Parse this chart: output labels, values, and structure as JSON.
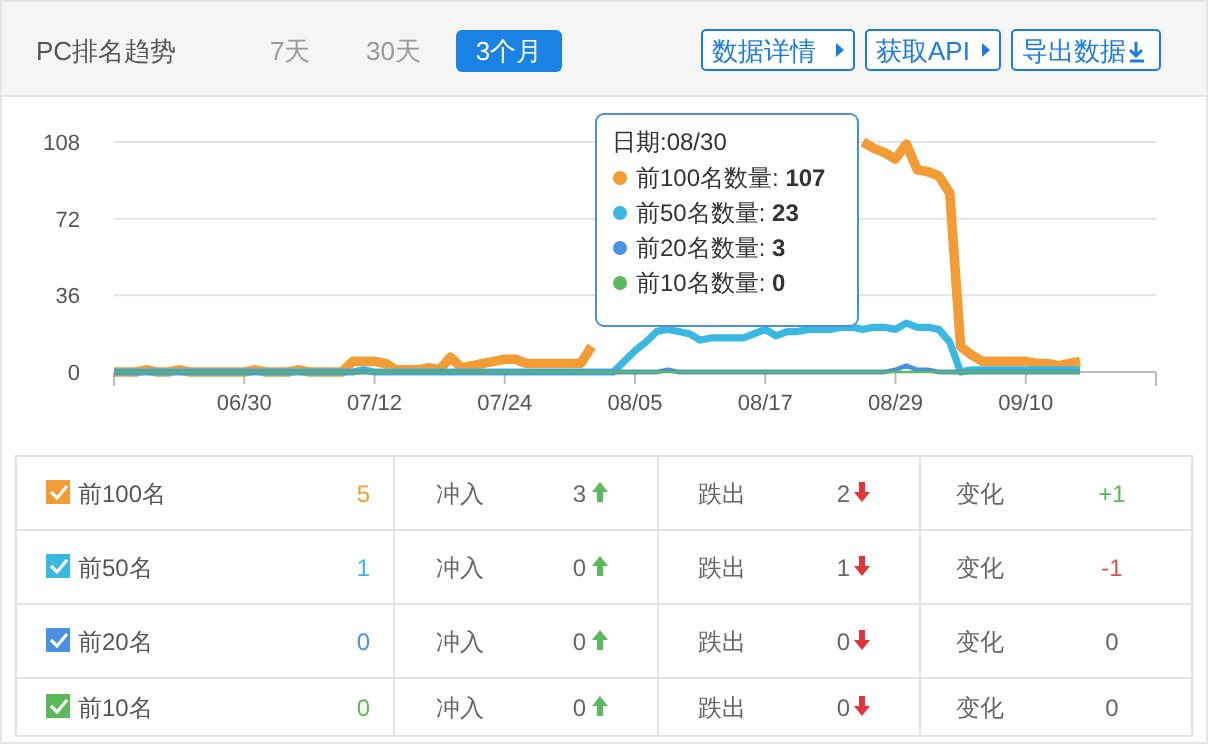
{
  "chart_data": {
    "type": "line",
    "title": "PC排名趋势",
    "x": [
      "--06-18",
      "--06-19",
      "--06-20",
      "--06-21",
      "--06-22",
      "--06-23",
      "--06-24",
      "--06-25",
      "--06-26",
      "--06-27",
      "--06-28",
      "--06-29",
      "--06-30",
      "--07-01",
      "--07-02",
      "--07-03",
      "--07-04",
      "--07-05",
      "--07-06",
      "--07-07",
      "--07-08",
      "--07-09",
      "--07-10",
      "--07-11",
      "--07-12",
      "--07-13",
      "--07-14",
      "--07-15",
      "--07-16",
      "--07-17",
      "--07-18",
      "--07-19",
      "--07-20",
      "--07-21",
      "--07-22",
      "--07-23",
      "--07-24",
      "--07-25",
      "--07-26",
      "--07-27",
      "--07-28",
      "--07-29",
      "--07-30",
      "--07-31",
      "--08-01",
      "--08-02",
      "--08-03",
      "--08-04",
      "--08-05",
      "--08-06",
      "--08-07",
      "--08-08",
      "--08-09",
      "--08-10",
      "--08-11",
      "--08-12",
      "--08-13",
      "--08-14",
      "--08-15",
      "--08-16",
      "--08-17",
      "--08-18",
      "--08-19",
      "--08-20",
      "--08-21",
      "--08-22",
      "--08-23",
      "--08-24",
      "--08-25",
      "--08-26",
      "--08-27",
      "--08-28",
      "--08-29",
      "--08-30",
      "--08-31",
      "--09-01",
      "--09-02",
      "--09-03",
      "--09-04",
      "--09-05",
      "--09-06",
      "--09-07",
      "--09-08",
      "--09-09",
      "--09-10",
      "--09-11",
      "--09-12",
      "--09-13",
      "--09-14",
      "--09-15"
    ],
    "series": [
      {
        "name": "前100名",
        "color": "#f39c35",
        "values": [
          0,
          0,
          0,
          1,
          0,
          0,
          1,
          0,
          0,
          0,
          0,
          0,
          0,
          1,
          0,
          0,
          0,
          1,
          0,
          0,
          0,
          0,
          5,
          5,
          5,
          4,
          1,
          1,
          1,
          2,
          1,
          7,
          2,
          3,
          4,
          5,
          6,
          6,
          4,
          4,
          4,
          4,
          4,
          4,
          12,
          null,
          null,
          null,
          null,
          null,
          null,
          null,
          null,
          null,
          null,
          null,
          null,
          null,
          null,
          null,
          null,
          null,
          null,
          null,
          null,
          null,
          null,
          null,
          null,
          108,
          105,
          103,
          100,
          107,
          95,
          94,
          92,
          84,
          12,
          8,
          5,
          5,
          5,
          5,
          5,
          4,
          4,
          3,
          4,
          5
        ]
      },
      {
        "name": "前50名",
        "color": "#3ab8e0",
        "values": [
          0,
          0,
          0,
          0,
          0,
          0,
          0,
          0,
          0,
          0,
          0,
          0,
          0,
          0,
          0,
          0,
          0,
          0,
          0,
          0,
          0,
          0,
          0,
          1,
          0,
          0,
          0,
          0,
          0,
          0,
          0,
          0,
          0,
          0,
          0,
          0,
          0,
          0,
          0,
          0,
          0,
          0,
          0,
          0,
          0,
          0,
          0,
          5,
          10,
          14,
          19,
          20,
          19,
          18,
          15,
          16,
          16,
          16,
          16,
          18,
          20,
          17,
          19,
          19,
          20,
          20,
          20,
          21,
          21,
          20,
          21,
          21,
          20,
          23,
          21,
          21,
          20,
          14,
          0,
          1,
          1,
          1,
          1,
          1,
          1,
          1,
          1,
          1,
          1,
          1
        ]
      },
      {
        "name": "前20名",
        "color": "#4a90e2",
        "values": [
          0,
          0,
          0,
          0,
          0,
          0,
          0,
          0,
          0,
          0,
          0,
          0,
          0,
          0,
          0,
          0,
          0,
          0,
          0,
          0,
          0,
          0,
          0,
          0,
          0,
          0,
          0,
          0,
          0,
          0,
          0,
          0,
          0,
          0,
          0,
          0,
          0,
          0,
          0,
          0,
          0,
          0,
          0,
          0,
          0,
          0,
          0,
          0,
          0,
          0,
          0,
          1,
          0,
          0,
          0,
          0,
          0,
          0,
          0,
          0,
          0,
          0,
          0,
          0,
          0,
          0,
          0,
          0,
          0,
          0,
          0,
          0,
          1,
          3,
          1,
          1,
          0,
          0,
          0,
          0,
          0,
          0,
          0,
          0,
          0,
          0,
          0,
          0,
          0,
          0
        ]
      },
      {
        "name": "前10名",
        "color": "#5cb85c",
        "values": [
          0,
          0,
          0,
          0,
          0,
          0,
          0,
          0,
          0,
          0,
          0,
          0,
          0,
          0,
          0,
          0,
          0,
          0,
          0,
          0,
          0,
          0,
          0,
          0,
          0,
          0,
          0,
          0,
          0,
          0,
          0,
          0,
          0,
          0,
          0,
          0,
          0,
          0,
          0,
          0,
          0,
          0,
          0,
          0,
          0,
          0,
          0,
          0,
          0,
          0,
          0,
          0,
          0,
          0,
          0,
          0,
          0,
          0,
          0,
          0,
          0,
          0,
          0,
          0,
          0,
          0,
          0,
          0,
          0,
          0,
          0,
          0,
          0,
          0,
          0,
          0,
          0,
          0,
          0,
          0,
          0,
          0,
          0,
          0,
          0,
          0,
          0,
          0,
          0,
          0
        ]
      }
    ],
    "xlim": [
      "--06-18",
      "--09-22"
    ],
    "xticks": [
      {
        "value": "--06-30",
        "label": "06/30"
      },
      {
        "value": "--07-12",
        "label": "07/12"
      },
      {
        "value": "--07-24",
        "label": "07/24"
      },
      {
        "value": "--08-05",
        "label": "08/05"
      },
      {
        "value": "--08-17",
        "label": "08/17"
      },
      {
        "value": "--08-29",
        "label": "08/29"
      },
      {
        "value": "--09-10",
        "label": "09/10"
      }
    ],
    "ylim": [
      0,
      108
    ],
    "yticks": [
      0,
      36,
      72,
      108
    ],
    "grid": "y",
    "legend": "bottom",
    "marker": "none",
    "line_style": "solid",
    "annotations": [
      "7天",
      "30天",
      "3个月",
      "数据详情",
      "获取API",
      "导出数据",
      "日期:08/30",
      "前100名数量: **107**",
      "前50名数量: **23**",
      "前20名数量: **3**",
      "前10名数量: **0**",
      "5",
      "冲入",
      "3",
      "跌出",
      "2",
      "变化",
      "+1",
      "1",
      "冲入",
      "0",
      "跌出",
      "1",
      "变化",
      "-1",
      "0",
      "冲入",
      "0",
      "跌出",
      "0",
      "变化",
      "0",
      "0",
      "冲入",
      "0",
      "跌出",
      "0",
      "变化",
      "0"
    ]
  }
}
